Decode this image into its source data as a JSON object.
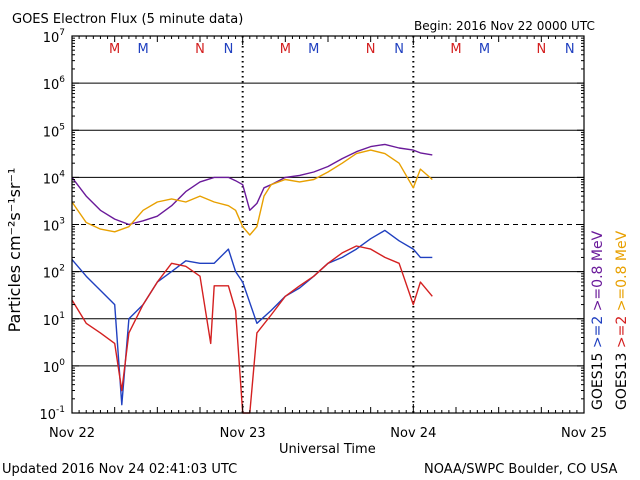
{
  "chart_data": {
    "type": "line",
    "title": "GOES Electron Flux (5 minute data)",
    "begin": "Begin: 2016 Nov 22 0000 UTC",
    "xlabel": "Universal Time",
    "ylabel": "Particles cm⁻²s⁻¹sr⁻¹",
    "y_scale": "log",
    "ylim": [
      0.1,
      10000000
    ],
    "y_ticks": [
      {
        "base": "10",
        "exp": "7",
        "value": 10000000
      },
      {
        "base": "10",
        "exp": "6",
        "value": 1000000
      },
      {
        "base": "10",
        "exp": "5",
        "value": 100000
      },
      {
        "base": "10",
        "exp": "4",
        "value": 10000
      },
      {
        "base": "10",
        "exp": "3",
        "value": 1000
      },
      {
        "base": "10",
        "exp": "2",
        "value": 100
      },
      {
        "base": "10",
        "exp": "1",
        "value": 10
      },
      {
        "base": "10",
        "exp": "0",
        "value": 1
      },
      {
        "base": "10",
        "exp": "-1",
        "value": 0.1
      }
    ],
    "xlim": [
      "2016-11-22 00:00",
      "2016-11-25 00:00"
    ],
    "x_ticks": [
      {
        "label": "Nov 22",
        "x": "2016-11-22 00:00"
      },
      {
        "label": "Nov 23",
        "x": "2016-11-23 00:00"
      },
      {
        "label": "Nov 24",
        "x": "2016-11-24 00:00"
      },
      {
        "label": "Nov 25",
        "x": "2016-11-25 00:00"
      }
    ],
    "grid_lines_y": [
      1000000,
      100000,
      10000,
      100,
      10,
      1
    ],
    "threshold_line": 1000,
    "day_boundaries": [
      "2016-11-23 00:00",
      "2016-11-24 00:00"
    ],
    "markers": [
      {
        "label": "M",
        "x": "2016-11-22 06:00",
        "color": "#d42020"
      },
      {
        "label": "M",
        "x": "2016-11-22 10:00",
        "color": "#2040c0"
      },
      {
        "label": "N",
        "x": "2016-11-22 18:00",
        "color": "#d42020"
      },
      {
        "label": "N",
        "x": "2016-11-22 22:00",
        "color": "#2040c0"
      },
      {
        "label": "M",
        "x": "2016-11-23 06:00",
        "color": "#d42020"
      },
      {
        "label": "M",
        "x": "2016-11-23 10:00",
        "color": "#2040c0"
      },
      {
        "label": "N",
        "x": "2016-11-23 18:00",
        "color": "#d42020"
      },
      {
        "label": "N",
        "x": "2016-11-23 22:00",
        "color": "#2040c0"
      },
      {
        "label": "M",
        "x": "2016-11-24 06:00",
        "color": "#d42020"
      },
      {
        "label": "M",
        "x": "2016-11-24 10:00",
        "color": "#2040c0"
      },
      {
        "label": "N",
        "x": "2016-11-24 18:00",
        "color": "#d42020"
      },
      {
        "label": "N",
        "x": "2016-11-24 22:00",
        "color": "#2040c0"
      }
    ],
    "legend": {
      "placement": "right",
      "groups": [
        {
          "label": "GOES15",
          "color": "#000000",
          "items": [
            {
              "text": ">=2",
              "color": "#2040c0"
            },
            {
              "text": ">=0.8 MeV",
              "color": "#6a1a9a"
            }
          ]
        },
        {
          "label": "GOES13",
          "color": "#000000",
          "items": [
            {
              "text": ">=2",
              "color": "#d42020"
            },
            {
              "text": ">=0.8 MeV",
              "color": "#e8a000"
            }
          ]
        }
      ]
    },
    "series": [
      {
        "satellite": "GOES15",
        "energy": ">=0.8 MeV",
        "color": "#6a1a9a",
        "x": [
          "2016-11-22 00:00",
          "2016-11-22 02:00",
          "2016-11-22 04:00",
          "2016-11-22 06:00",
          "2016-11-22 08:00",
          "2016-11-22 10:00",
          "2016-11-22 12:00",
          "2016-11-22 14:00",
          "2016-11-22 16:00",
          "2016-11-22 18:00",
          "2016-11-22 20:00",
          "2016-11-22 22:00",
          "2016-11-22 23:00",
          "2016-11-23 00:00",
          "2016-11-23 01:00",
          "2016-11-23 02:00",
          "2016-11-23 03:00",
          "2016-11-23 04:00",
          "2016-11-23 06:00",
          "2016-11-23 08:00",
          "2016-11-23 10:00",
          "2016-11-23 12:00",
          "2016-11-23 14:00",
          "2016-11-23 16:00",
          "2016-11-23 18:00",
          "2016-11-23 20:00",
          "2016-11-23 22:00",
          "2016-11-24 00:00",
          "2016-11-24 01:00",
          "2016-11-24 02:40"
        ],
        "values": [
          10000,
          4000,
          2000,
          1300,
          1000,
          1200,
          1500,
          2500,
          5000,
          8000,
          10000,
          10000,
          8500,
          7000,
          2000,
          2800,
          6000,
          7000,
          10000,
          11000,
          13000,
          17000,
          25000,
          35000,
          45000,
          50000,
          42000,
          38000,
          33000,
          30000
        ]
      },
      {
        "satellite": "GOES13",
        "energy": ">=0.8 MeV",
        "color": "#e8a000",
        "x": [
          "2016-11-22 00:00",
          "2016-11-22 02:00",
          "2016-11-22 04:00",
          "2016-11-22 06:00",
          "2016-11-22 08:00",
          "2016-11-22 10:00",
          "2016-11-22 12:00",
          "2016-11-22 14:00",
          "2016-11-22 16:00",
          "2016-11-22 18:00",
          "2016-11-22 20:00",
          "2016-11-22 22:00",
          "2016-11-22 23:00",
          "2016-11-23 00:00",
          "2016-11-23 01:00",
          "2016-11-23 02:00",
          "2016-11-23 03:00",
          "2016-11-23 04:00",
          "2016-11-23 06:00",
          "2016-11-23 08:00",
          "2016-11-23 10:00",
          "2016-11-23 12:00",
          "2016-11-23 14:00",
          "2016-11-23 16:00",
          "2016-11-23 18:00",
          "2016-11-23 20:00",
          "2016-11-23 22:00",
          "2016-11-24 00:00",
          "2016-11-24 01:00",
          "2016-11-24 02:40"
        ],
        "values": [
          3000,
          1100,
          800,
          700,
          900,
          2000,
          3000,
          3500,
          3000,
          4000,
          3000,
          2500,
          2000,
          900,
          600,
          900,
          4000,
          7000,
          9000,
          8000,
          9000,
          13000,
          20000,
          32000,
          38000,
          32000,
          20000,
          6000,
          15000,
          9000
        ]
      },
      {
        "satellite": "GOES15",
        "energy": ">=2 MeV",
        "color": "#2040c0",
        "x": [
          "2016-11-22 00:00",
          "2016-11-22 02:00",
          "2016-11-22 04:00",
          "2016-11-22 06:00",
          "2016-11-22 07:00",
          "2016-11-22 08:00",
          "2016-11-22 10:00",
          "2016-11-22 12:00",
          "2016-11-22 14:00",
          "2016-11-22 16:00",
          "2016-11-22 18:00",
          "2016-11-22 20:00",
          "2016-11-22 22:00",
          "2016-11-22 23:00",
          "2016-11-23 00:00",
          "2016-11-23 02:00",
          "2016-11-23 04:00",
          "2016-11-23 06:00",
          "2016-11-23 08:00",
          "2016-11-23 10:00",
          "2016-11-23 12:00",
          "2016-11-23 14:00",
          "2016-11-23 16:00",
          "2016-11-23 18:00",
          "2016-11-23 20:00",
          "2016-11-23 22:00",
          "2016-11-24 00:00",
          "2016-11-24 01:00",
          "2016-11-24 02:40"
        ],
        "values": [
          180,
          80,
          40,
          20,
          0.15,
          10,
          20,
          60,
          100,
          170,
          150,
          150,
          300,
          100,
          60,
          8,
          15,
          30,
          45,
          80,
          150,
          200,
          300,
          500,
          750,
          450,
          300,
          200,
          200
        ]
      },
      {
        "satellite": "GOES13",
        "energy": ">=2 MeV",
        "color": "#d42020",
        "x": [
          "2016-11-22 00:00",
          "2016-11-22 02:00",
          "2016-11-22 04:00",
          "2016-11-22 06:00",
          "2016-11-22 07:00",
          "2016-11-22 08:00",
          "2016-11-22 10:00",
          "2016-11-22 12:00",
          "2016-11-22 14:00",
          "2016-11-22 16:00",
          "2016-11-22 18:00",
          "2016-11-22 19:30",
          "2016-11-22 20:00",
          "2016-11-22 22:00",
          "2016-11-22 23:00",
          "2016-11-23 00:00",
          "2016-11-23 01:00",
          "2016-11-23 02:00",
          "2016-11-23 04:00",
          "2016-11-23 06:00",
          "2016-11-23 08:00",
          "2016-11-23 10:00",
          "2016-11-23 12:00",
          "2016-11-23 14:00",
          "2016-11-23 16:00",
          "2016-11-23 18:00",
          "2016-11-23 20:00",
          "2016-11-23 22:00",
          "2016-11-24 00:00",
          "2016-11-24 01:00",
          "2016-11-24 02:40"
        ],
        "values": [
          25,
          8,
          5,
          3,
          0.3,
          5,
          20,
          60,
          150,
          130,
          80,
          3,
          50,
          50,
          15,
          0.1,
          0.1,
          5,
          12,
          30,
          50,
          80,
          150,
          250,
          350,
          300,
          200,
          150,
          20,
          60,
          30
        ]
      }
    ]
  },
  "footer": {
    "updated": "Updated 2016 Nov 24 02:41:03 UTC",
    "credit": "NOAA/SWPC Boulder, CO USA"
  }
}
